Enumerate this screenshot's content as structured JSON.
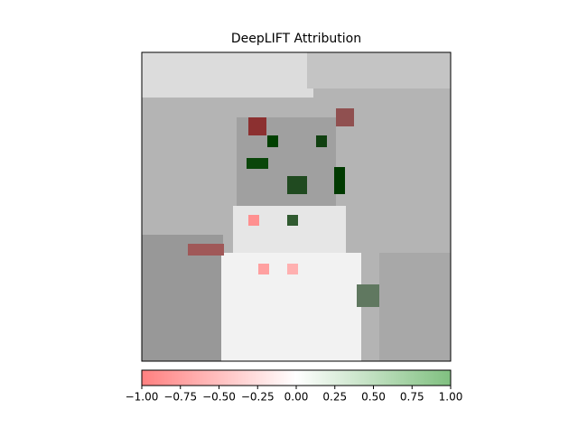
{
  "chart_data": {
    "type": "colorbar",
    "title": "DeepLIFT Attribution",
    "xlim": [
      -1,
      1
    ],
    "xticks": [
      {
        "value": -1,
        "label": "−1.00"
      },
      {
        "value": -0.75,
        "label": "−0.75"
      },
      {
        "value": -0.5,
        "label": "−0.50"
      },
      {
        "value": -0.25,
        "label": "−0.25"
      },
      {
        "value": 0,
        "label": "0.00"
      },
      {
        "value": 0.25,
        "label": "0.25"
      },
      {
        "value": 0.5,
        "label": "0.50"
      },
      {
        "value": 0.75,
        "label": "0.75"
      },
      {
        "value": 1,
        "label": "1.00"
      }
    ],
    "colors": [
      "#ff8080",
      "#ffffff",
      "#80c080"
    ]
  }
}
